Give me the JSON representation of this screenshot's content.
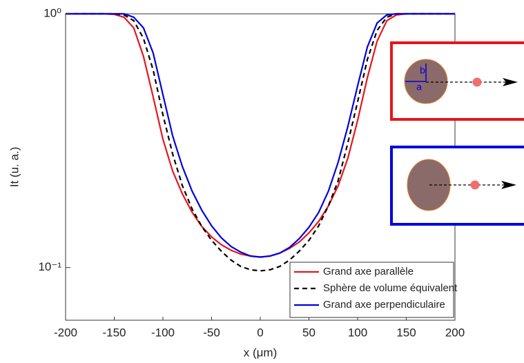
{
  "chart_data": {
    "type": "line",
    "y_scale": "log",
    "x_label": "x (μm)",
    "y_label": "It (u. a.)",
    "x": [
      -200,
      -190,
      -180,
      -170,
      -160,
      -150,
      -140,
      -130,
      -120,
      -110,
      -100,
      -90,
      -80,
      -70,
      -60,
      -50,
      -40,
      -30,
      -20,
      -10,
      0,
      10,
      20,
      30,
      40,
      50,
      60,
      70,
      80,
      90,
      100,
      110,
      120,
      130,
      140,
      150,
      160,
      170,
      180,
      190,
      200
    ],
    "series": [
      {
        "name": "Grand axe parallèle",
        "color": "#e8141c",
        "dash": false,
        "values": [
          1,
          1,
          1,
          1,
          1,
          0.995,
          0.97,
          0.88,
          0.68,
          0.47,
          0.32,
          0.24,
          0.195,
          0.165,
          0.145,
          0.132,
          0.123,
          0.117,
          0.113,
          0.111,
          0.11,
          0.111,
          0.114,
          0.119,
          0.126,
          0.137,
          0.152,
          0.175,
          0.21,
          0.27,
          0.38,
          0.56,
          0.78,
          0.94,
          0.99,
          1,
          1,
          1,
          1,
          1,
          1
        ]
      },
      {
        "name": "Sphère de volume équivalent",
        "color": "#000000",
        "dash": true,
        "values": [
          1,
          1,
          1,
          1,
          1,
          1,
          0.99,
          0.94,
          0.8,
          0.6,
          0.4,
          0.28,
          0.21,
          0.17,
          0.145,
          0.128,
          0.116,
          0.107,
          0.101,
          0.098,
          0.097,
          0.098,
          0.101,
          0.107,
          0.116,
          0.128,
          0.146,
          0.175,
          0.22,
          0.31,
          0.45,
          0.66,
          0.86,
          0.97,
          1,
          1,
          1,
          1,
          1,
          1,
          1
        ]
      },
      {
        "name": "Grand axe perpendiculaire",
        "color": "#0000e0",
        "dash": false,
        "values": [
          1,
          1,
          1,
          1,
          1,
          1,
          1,
          0.97,
          0.88,
          0.7,
          0.48,
          0.33,
          0.25,
          0.2,
          0.168,
          0.146,
          0.131,
          0.121,
          0.115,
          0.111,
          0.11,
          0.111,
          0.114,
          0.12,
          0.13,
          0.144,
          0.165,
          0.2,
          0.26,
          0.36,
          0.52,
          0.74,
          0.92,
          0.99,
          1,
          1,
          1,
          1,
          1,
          1,
          1
        ]
      }
    ],
    "xlim": [
      -200,
      200
    ],
    "xticks": [
      -200,
      -150,
      -100,
      -50,
      0,
      50,
      100,
      150,
      200
    ],
    "ylim": [
      0.062,
      1
    ],
    "yticks": [
      {
        "value": 0.1,
        "label": "10⁻¹"
      },
      {
        "value": 1,
        "label": "10⁰"
      }
    ],
    "legend": "bottom-right",
    "annotations": [
      "b",
      "a"
    ]
  }
}
